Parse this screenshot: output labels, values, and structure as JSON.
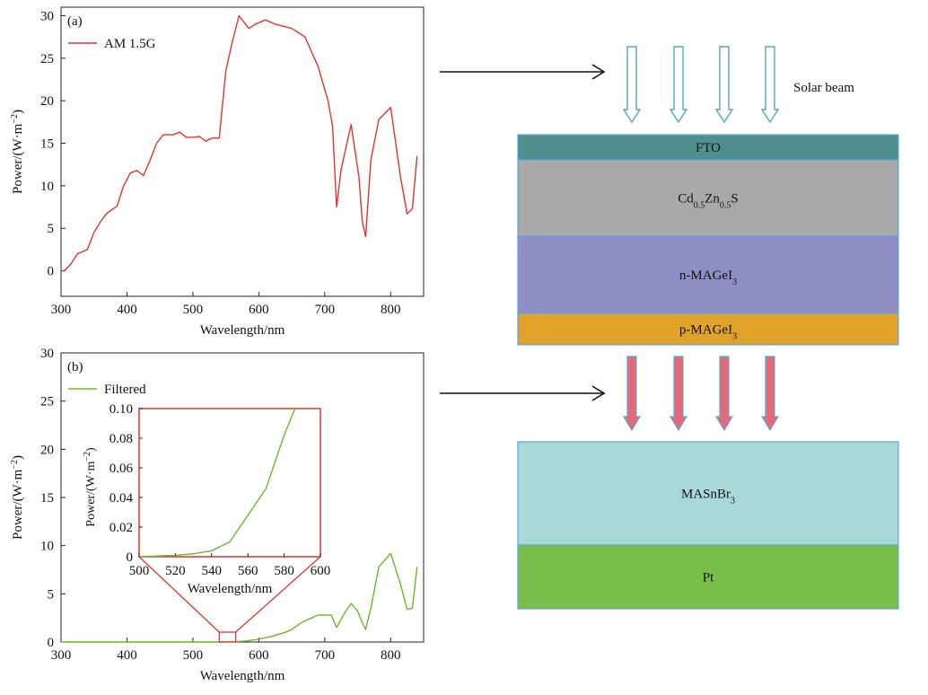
{
  "chart_data": [
    {
      "type": "line",
      "panel_label": "(a)",
      "xlabel": "Wavelength/nm",
      "ylabel": "Power/(W·m⁻²)",
      "xlim": [
        300,
        850
      ],
      "ylim": [
        -3,
        31
      ],
      "xticks": [
        300,
        400,
        500,
        600,
        700,
        800
      ],
      "yticks": [
        0,
        5,
        10,
        15,
        20,
        25,
        30
      ],
      "legend": "top-left",
      "series": [
        {
          "name": "AM 1.5G",
          "color": "#e0342f",
          "x": [
            300,
            305,
            315,
            325,
            340,
            350,
            360,
            370,
            385,
            395,
            405,
            415,
            425,
            435,
            445,
            455,
            470,
            480,
            490,
            500,
            510,
            520,
            525,
            530,
            540,
            550,
            560,
            570,
            585,
            595,
            610,
            625,
            650,
            670,
            690,
            705,
            712,
            718,
            725,
            740,
            752,
            757,
            762,
            770,
            782,
            800,
            815,
            825,
            833,
            840
          ],
          "y": [
            0,
            0,
            0.8,
            2,
            2.5,
            4.5,
            5.8,
            6.8,
            7.6,
            10,
            11.5,
            11.8,
            11.2,
            13,
            15,
            16,
            16,
            16.3,
            15.7,
            15.7,
            15.8,
            15.2,
            15.5,
            15.6,
            15.6,
            23.5,
            27,
            30,
            28.5,
            29,
            29.5,
            29,
            28.5,
            27.5,
            24,
            20,
            17,
            7.5,
            12,
            17.2,
            11,
            5.8,
            4,
            13,
            17.8,
            19.2,
            11,
            6.7,
            7.3,
            13.5
          ]
        }
      ]
    },
    {
      "type": "line",
      "panel_label": "(b)",
      "xlabel": "Wavelength/nm",
      "ylabel": "Power/(W·m⁻²)",
      "xlim": [
        300,
        850
      ],
      "ylim": [
        0,
        30
      ],
      "xticks": [
        300,
        400,
        500,
        600,
        700,
        800
      ],
      "yticks": [
        0,
        5,
        10,
        15,
        20,
        25,
        30
      ],
      "legend": "top-left",
      "series": [
        {
          "name": "Filtered",
          "color": "#6fb52c",
          "x": [
            300,
            500,
            540,
            560,
            580,
            590,
            600,
            620,
            640,
            650,
            660,
            670,
            680,
            690,
            700,
            710,
            718,
            730,
            740,
            750,
            757,
            762,
            770,
            782,
            800,
            815,
            825,
            833,
            840
          ],
          "y": [
            0,
            0,
            0,
            0.03,
            0.1,
            0.2,
            0.3,
            0.6,
            1,
            1.3,
            1.8,
            2.2,
            2.5,
            2.8,
            2.8,
            2.8,
            1.5,
            3,
            4,
            3.2,
            2,
            1.3,
            3.5,
            7.8,
            9.2,
            6,
            3.4,
            3.5,
            7.8
          ]
        }
      ],
      "inset": {
        "xlabel": "Wavelength/nm",
        "ylabel": "Power/(W·m⁻²)",
        "xlim": [
          500,
          600
        ],
        "ylim": [
          0,
          0.1
        ],
        "xticks": [
          500,
          520,
          540,
          560,
          580,
          600
        ],
        "yticks": [
          0,
          0.02,
          0.04,
          0.06,
          0.08,
          0.1
        ],
        "ytick_labels": [
          "0",
          "0.02",
          "0.04",
          "0.06",
          "0.08",
          "0.10"
        ],
        "zoom_range": [
          540,
          565
        ],
        "x": [
          500,
          510,
          520,
          530,
          540,
          550,
          560,
          570,
          580,
          586
        ],
        "y": [
          0,
          0.0005,
          0.001,
          0.002,
          0.004,
          0.01,
          0.028,
          0.046,
          0.082,
          0.1
        ]
      }
    }
  ],
  "diagram": {
    "beam_label": "Solar beam",
    "layers_top": [
      {
        "label_main": "FTO",
        "label_parts": [
          [
            "FTO",
            ""
          ]
        ],
        "color": "#4f8f8e"
      },
      {
        "label_main": "Cd0.5Zn0.5S",
        "label_parts": [
          [
            "Cd",
            ""
          ],
          [
            "0.5",
            "sub"
          ],
          [
            "Zn",
            ""
          ],
          [
            "0.5",
            "sub"
          ],
          [
            "S",
            ""
          ]
        ],
        "color": "#a9a9a9"
      },
      {
        "label_main": "n-MAGeI3",
        "label_parts": [
          [
            "n-MAGeI",
            ""
          ],
          [
            "3",
            "sub"
          ]
        ],
        "color": "#8f8ec5"
      },
      {
        "label_main": "p-MAGeI3",
        "label_parts": [
          [
            "p-MAGeI",
            ""
          ],
          [
            "3",
            "sub"
          ]
        ],
        "color": "#e0a228"
      }
    ],
    "layers_bottom": [
      {
        "label_main": "MASnBr3",
        "label_parts": [
          [
            "MASnBr",
            ""
          ],
          [
            "3",
            "sub"
          ]
        ],
        "color": "#a8d8d8"
      },
      {
        "label_main": "Pt",
        "label_parts": [
          [
            "Pt",
            ""
          ]
        ],
        "color": "#79be4b"
      }
    ],
    "colors": {
      "border": "#5aa9d6",
      "top_arrow_stroke": "#52a8b0",
      "bottom_arrow_fill": "#e26a79",
      "bottom_arrow_stroke": "#5aa9d6",
      "pointer": "#111111"
    }
  }
}
